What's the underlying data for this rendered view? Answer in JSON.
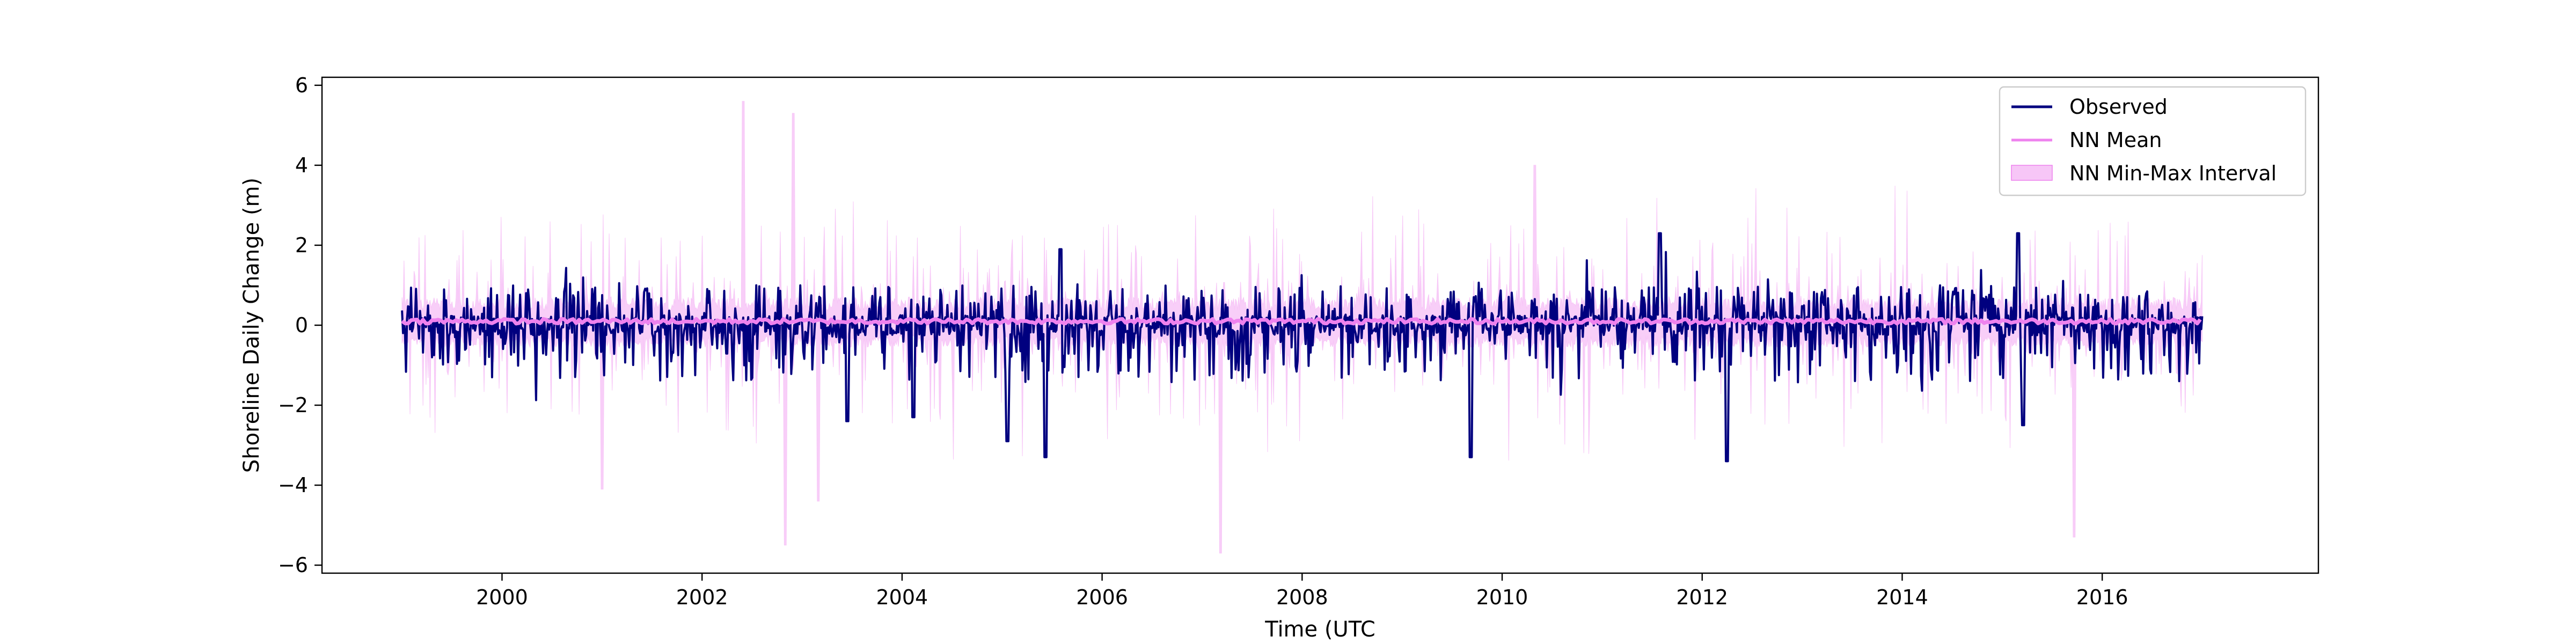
{
  "chart_data": {
    "type": "line",
    "title": "",
    "xlabel": "Time (UTC",
    "ylabel": "Shoreline Daily Change (m)",
    "xlim": [
      "1998-03-15",
      "2018-03-01"
    ],
    "ylim": [
      -6.2,
      6.2
    ],
    "x_tick_labels": [
      "2000",
      "2002",
      "2004",
      "2006",
      "2008",
      "2010",
      "2012",
      "2014",
      "2016"
    ],
    "y_tick_labels": [
      "6",
      "4",
      "2",
      "0",
      "−2",
      "−4",
      "−6"
    ],
    "y_ticks": [
      6,
      4,
      2,
      0,
      -2,
      -4,
      -6
    ],
    "grid": false,
    "legend_position": "top-right",
    "data_range": {
      "start": "1999-01-01",
      "end": "2017-01-01"
    },
    "series": [
      {
        "name": "Observed",
        "kind": "line",
        "color": "#00007f",
        "summary": {
          "typical_min": -1.5,
          "typical_max": 1.0,
          "extremes": [
            {
              "x": "2003-06-15",
              "y": -2.4
            },
            {
              "x": "2004-02-10",
              "y": -2.3
            },
            {
              "x": "2005-01-20",
              "y": -2.9
            },
            {
              "x": "2005-06-10",
              "y": -3.3
            },
            {
              "x": "2005-08-01",
              "y": 1.9
            },
            {
              "x": "2009-09-10",
              "y": -3.3
            },
            {
              "x": "2011-08-01",
              "y": 2.3
            },
            {
              "x": "2012-04-01",
              "y": -3.4
            },
            {
              "x": "2015-03-01",
              "y": 2.3
            },
            {
              "x": "2015-03-20",
              "y": -2.5
            }
          ]
        }
      },
      {
        "name": "NN Mean",
        "kind": "line",
        "color": "#ee82ee",
        "approx_value": 0.1
      },
      {
        "name": "NN Min-Max Interval",
        "kind": "band",
        "color": "#f7c6f7",
        "summary": {
          "typical_min": -2.0,
          "typical_max": 2.5,
          "extremes": [
            {
              "x": "2002-06-01",
              "y": 5.6
            },
            {
              "x": "2002-11-01",
              "y": -5.5
            },
            {
              "x": "2002-12-01",
              "y": 5.3
            },
            {
              "x": "2007-03-10",
              "y": -5.7
            },
            {
              "x": "2015-09-20",
              "y": -5.3
            },
            {
              "x": "2001-01-01",
              "y": -4.1
            },
            {
              "x": "2003-03-01",
              "y": -4.4
            },
            {
              "x": "2010-05-01",
              "y": 4.0
            }
          ]
        }
      }
    ]
  }
}
